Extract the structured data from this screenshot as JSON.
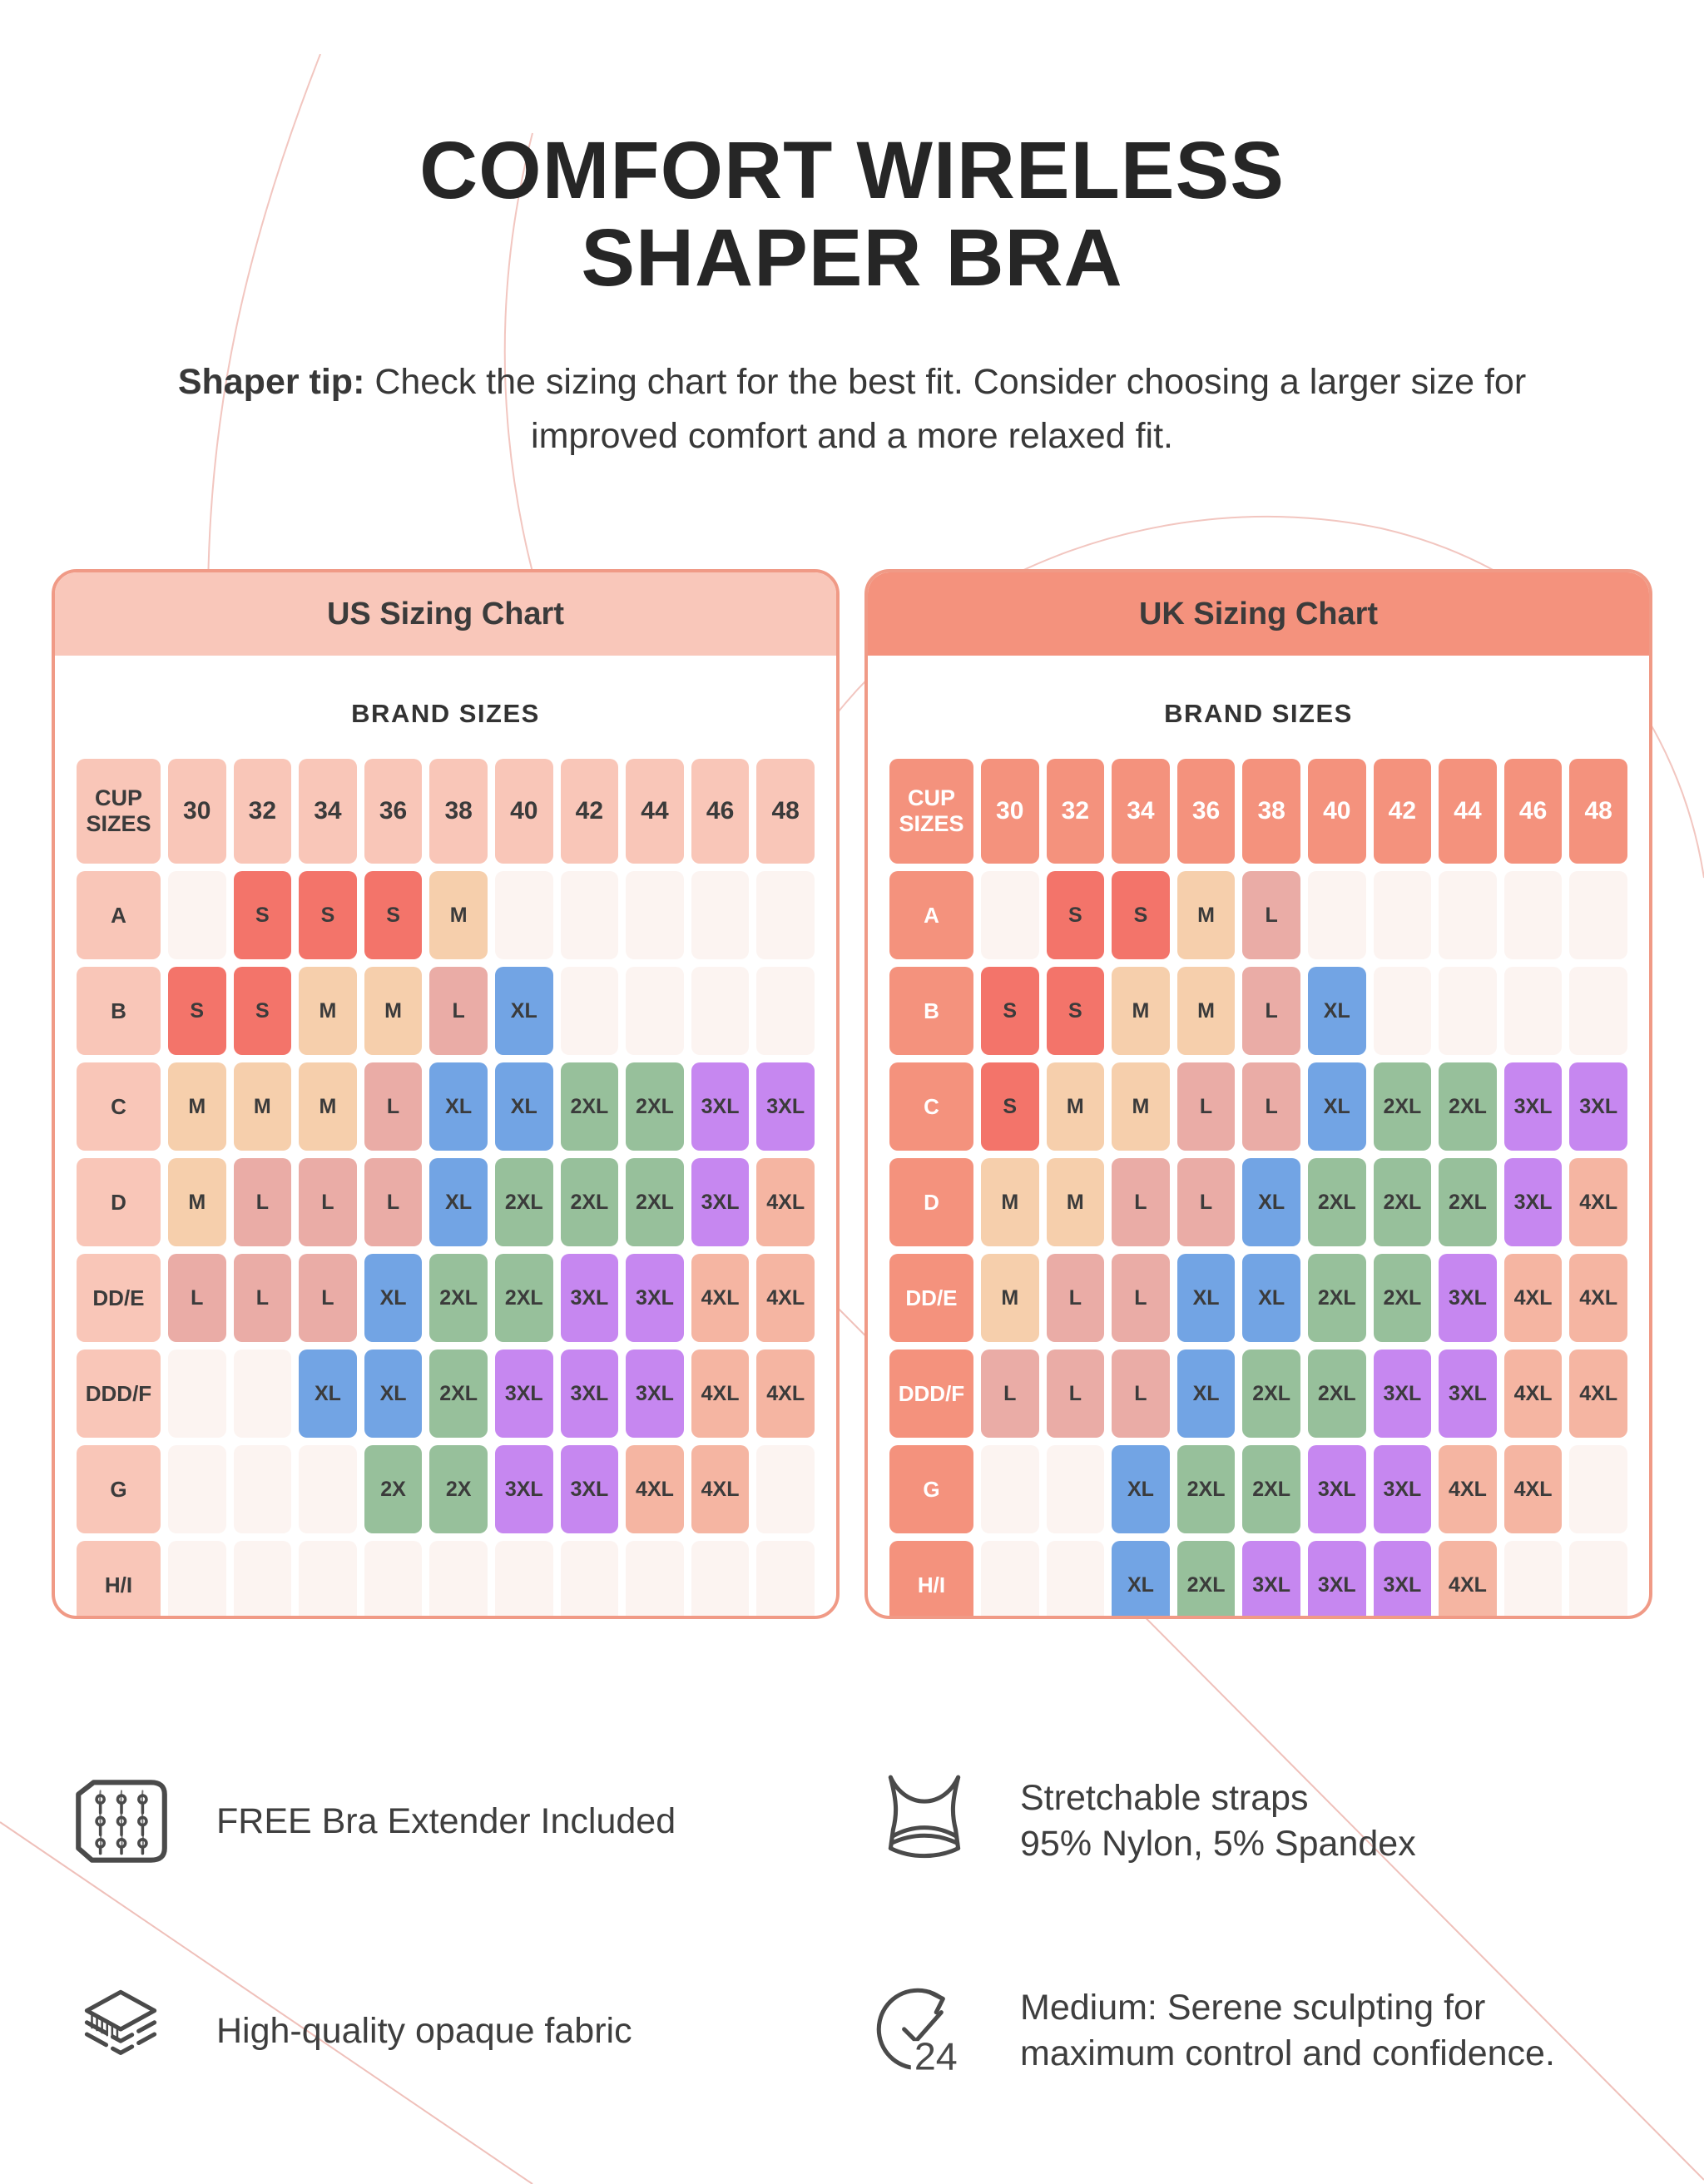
{
  "page": {
    "title_line1": "COMFORT WIRELESS",
    "title_line2": "SHAPER BRA",
    "tip_bold": "Shaper tip:",
    "tip_rest": " Check the sizing chart for the best fit. Consider choosing a larger size for improved comfort and a more relaxed fit."
  },
  "card_border_color": "#F09A86",
  "cell_text_color": "#3B3B3B",
  "size_colors": {
    "S": "#F3746A",
    "M": "#F6CFAC",
    "L": "#EAACA6",
    "XL": "#72A4E4",
    "2XL": "#97C09B",
    "2X": "#97C09B",
    "3XL": "#C687F0",
    "4XL": "#F5B5A2",
    "empty": "#FCF4F1"
  },
  "chart_data": [
    {
      "type": "table",
      "title": "US Sizing Chart",
      "columns_header": "BRAND SIZES",
      "corner_label": "CUP SIZES",
      "columns": [
        "30",
        "32",
        "34",
        "36",
        "38",
        "40",
        "42",
        "44",
        "46",
        "48"
      ],
      "rows": [
        "A",
        "B",
        "C",
        "D",
        "DD/E",
        "DDD/F",
        "G",
        "H/I"
      ],
      "values": [
        [
          "",
          "S",
          "S",
          "S",
          "M",
          "",
          "",
          "",
          "",
          ""
        ],
        [
          "S",
          "S",
          "M",
          "M",
          "L",
          "XL",
          "",
          "",
          "",
          ""
        ],
        [
          "M",
          "M",
          "M",
          "L",
          "XL",
          "XL",
          "2XL",
          "2XL",
          "3XL",
          "3XL"
        ],
        [
          "M",
          "L",
          "L",
          "L",
          "XL",
          "2XL",
          "2XL",
          "2XL",
          "3XL",
          "4XL"
        ],
        [
          "L",
          "L",
          "L",
          "XL",
          "2XL",
          "2XL",
          "3XL",
          "3XL",
          "4XL",
          "4XL"
        ],
        [
          "",
          "",
          "XL",
          "XL",
          "2XL",
          "3XL",
          "3XL",
          "3XL",
          "4XL",
          "4XL"
        ],
        [
          "",
          "",
          "",
          "2X",
          "2X",
          "3XL",
          "3XL",
          "4XL",
          "4XL",
          ""
        ],
        [
          "",
          "",
          "",
          "",
          "",
          "",
          "",
          "",
          "",
          ""
        ]
      ],
      "theme": {
        "header_bg": "#F9C7BA",
        "header_text": "#3B3B3B",
        "axis_bg": "#F9C6B8",
        "axis_text": "#3B3B3B"
      }
    },
    {
      "type": "table",
      "title": "UK Sizing Chart",
      "columns_header": "BRAND SIZES",
      "corner_label": "CUP SIZES",
      "columns": [
        "30",
        "32",
        "34",
        "36",
        "38",
        "40",
        "42",
        "44",
        "46",
        "48"
      ],
      "rows": [
        "A",
        "B",
        "C",
        "D",
        "DD/E",
        "DDD/F",
        "G",
        "H/I"
      ],
      "values": [
        [
          "",
          "S",
          "S",
          "M",
          "L",
          "",
          "",
          "",
          "",
          ""
        ],
        [
          "S",
          "S",
          "M",
          "M",
          "L",
          "XL",
          "",
          "",
          "",
          ""
        ],
        [
          "S",
          "M",
          "M",
          "L",
          "L",
          "XL",
          "2XL",
          "2XL",
          "3XL",
          "3XL"
        ],
        [
          "M",
          "M",
          "L",
          "L",
          "XL",
          "2XL",
          "2XL",
          "2XL",
          "3XL",
          "4XL"
        ],
        [
          "M",
          "L",
          "L",
          "XL",
          "XL",
          "2XL",
          "2XL",
          "3XL",
          "4XL",
          "4XL"
        ],
        [
          "L",
          "L",
          "L",
          "XL",
          "2XL",
          "2XL",
          "3XL",
          "3XL",
          "4XL",
          "4XL"
        ],
        [
          "",
          "",
          "XL",
          "2XL",
          "2XL",
          "3XL",
          "3XL",
          "4XL",
          "4XL",
          ""
        ],
        [
          "",
          "",
          "XL",
          "2XL",
          "3XL",
          "3XL",
          "3XL",
          "4XL",
          "",
          ""
        ]
      ],
      "theme": {
        "header_bg": "#F4927D",
        "header_text": "#3B3B3B",
        "axis_bg": "#F4927D",
        "axis_text": "#FFFFFF"
      }
    }
  ],
  "features": [
    {
      "icon": "bra-extender-icon",
      "lines": [
        "FREE Bra Extender Included"
      ]
    },
    {
      "icon": "bra-icon",
      "lines": [
        "Stretchable straps",
        "95% Nylon, 5% Spandex"
      ]
    },
    {
      "icon": "fabric-layers-icon",
      "lines": [
        "High-quality opaque fabric"
      ]
    },
    {
      "icon": "clock-24-icon",
      "icon_label": "24",
      "lines": [
        "Medium: Serene sculpting for maximum control and confidence."
      ]
    }
  ]
}
